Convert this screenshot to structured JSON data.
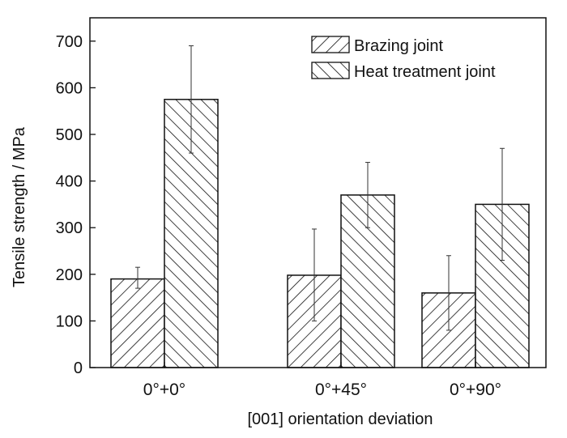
{
  "chart_data": {
    "type": "bar",
    "xlabel": "[001] orientation deviation",
    "ylabel": "Tensile strength / MPa",
    "ylim": [
      0,
      750
    ],
    "yticks": [
      0,
      100,
      200,
      300,
      400,
      500,
      600,
      700
    ],
    "categories": [
      "0°+0°",
      "0°+45°",
      "0°+90°"
    ],
    "series": [
      {
        "name": "Brazing joint",
        "pattern": "hatch-forward",
        "values": [
          190,
          198,
          160
        ],
        "error_low": [
          170,
          100,
          80
        ],
        "error_high": [
          215,
          297,
          240
        ]
      },
      {
        "name": "Heat treatment joint",
        "pattern": "hatch-backward",
        "values": [
          575,
          370,
          350
        ],
        "error_low": [
          460,
          300,
          230
        ],
        "error_high": [
          690,
          440,
          470
        ]
      }
    ],
    "legend_position": "top-right",
    "grid": false,
    "colors": {
      "stroke": "#111111",
      "background": "#ffffff"
    }
  }
}
